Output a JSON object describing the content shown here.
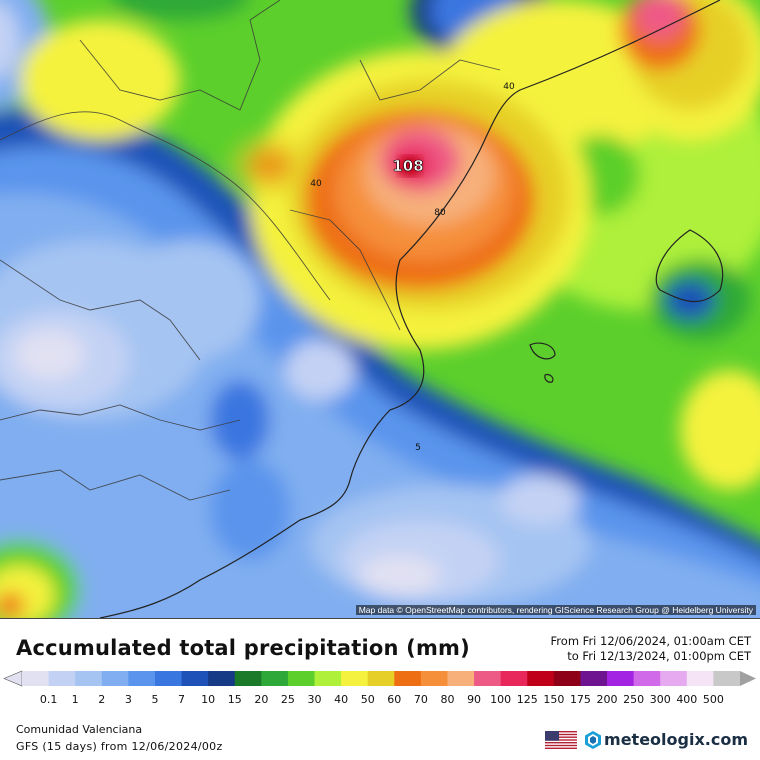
{
  "map": {
    "attribution": "Map data © OpenStreetMap contributors, rendering GIScience Research Group @ Heidelberg University",
    "labels": [
      {
        "id": "max",
        "text": "108"
      },
      {
        "id": "c40a",
        "text": "40"
      },
      {
        "id": "c40b",
        "text": "40"
      },
      {
        "id": "c80",
        "text": "80"
      },
      {
        "id": "c5",
        "text": "5"
      }
    ]
  },
  "header": {
    "title": "Accumulated total precipitation (mm)",
    "period_from": "From Fri 12/06/2024, 01:00am CET",
    "period_to": "to Fri 12/13/2024, 01:00pm CET"
  },
  "legend": {
    "unit": "mm",
    "bins": [
      {
        "label": "0.1",
        "color": "#e1e1f2"
      },
      {
        "label": "1",
        "color": "#c3d2f4"
      },
      {
        "label": "2",
        "color": "#a5c4f2"
      },
      {
        "label": "3",
        "color": "#80aef0"
      },
      {
        "label": "5",
        "color": "#5a94ec"
      },
      {
        "label": "7",
        "color": "#3a76e0"
      },
      {
        "label": "10",
        "color": "#1e52b8"
      },
      {
        "label": "15",
        "color": "#163a86"
      },
      {
        "label": "20",
        "color": "#1a7a2a"
      },
      {
        "label": "25",
        "color": "#2ea838"
      },
      {
        "label": "30",
        "color": "#5ccf2c"
      },
      {
        "label": "40",
        "color": "#aef03a"
      },
      {
        "label": "50",
        "color": "#f4f23e"
      },
      {
        "label": "60",
        "color": "#e6d028"
      },
      {
        "label": "70",
        "color": "#ee6e14"
      },
      {
        "label": "80",
        "color": "#f58f3a"
      },
      {
        "label": "90",
        "color": "#f7b07a"
      },
      {
        "label": "100",
        "color": "#ee5a86"
      },
      {
        "label": "125",
        "color": "#e8285a"
      },
      {
        "label": "150",
        "color": "#c00018"
      },
      {
        "label": "175",
        "color": "#8e0018"
      },
      {
        "label": "200",
        "color": "#6e1490"
      },
      {
        "label": "250",
        "color": "#a424e4"
      },
      {
        "label": "300",
        "color": "#d06ae8"
      },
      {
        "label": "400",
        "color": "#e6aaf0"
      },
      {
        "label": "500",
        "color": "#f4e4f6"
      },
      {
        "label": "",
        "color": "#c8c8c8"
      }
    ]
  },
  "footer": {
    "region": "Comunidad Valenciana",
    "model": "GFS (15 days) from  12/06/2024/00z",
    "brand": "meteologix.com"
  }
}
